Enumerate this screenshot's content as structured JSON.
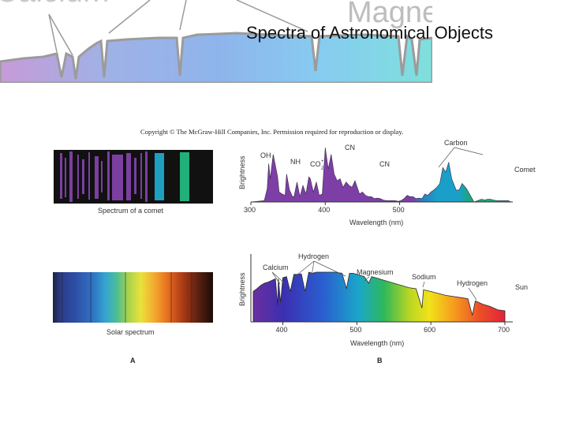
{
  "banner": {
    "left_word": "Calcium",
    "right_word": "Magne",
    "colors": [
      "#c79ad8",
      "#9fb2e6",
      "#8fb4ec",
      "#86ccf0",
      "#7fe0dc"
    ]
  },
  "slide": {
    "title": "Spectra of Astronomical Objects"
  },
  "figure": {
    "copyright": "Copyright © The McGraw-Hill Companies, Inc. Permission required for reproduction or display.",
    "panel_a_letter": "A",
    "panel_b_letter": "B",
    "comet_strip_caption": "Spectrum of a comet",
    "solar_strip_caption": "Solar spectrum"
  },
  "chart_data": [
    {
      "type": "line",
      "title": "Comet",
      "xlabel": "Wavelength (nm)",
      "ylabel": "Brightness",
      "xlim": [
        300,
        650
      ],
      "xticks": [
        300,
        400,
        500
      ],
      "x": [
        300,
        318,
        322,
        324,
        326,
        330,
        336,
        338,
        342,
        346,
        348,
        352,
        356,
        358,
        362,
        366,
        370,
        374,
        378,
        380,
        384,
        388,
        392,
        396,
        400,
        404,
        408,
        412,
        416,
        420,
        424,
        428,
        432,
        436,
        440,
        446,
        450,
        454,
        458,
        462,
        466,
        470,
        474,
        478,
        482,
        486,
        490,
        494,
        498,
        502,
        506,
        510,
        514,
        518,
        522,
        526,
        530,
        534,
        538,
        542,
        546,
        550,
        554,
        558,
        562,
        566,
        570,
        576,
        580,
        584,
        590,
        600,
        605,
        610,
        615,
        618,
        622,
        626,
        630,
        634,
        638,
        642,
        646,
        650
      ],
      "y": [
        0,
        0.02,
        0.2,
        0.58,
        0.35,
        0.72,
        0.38,
        0.15,
        0.12,
        0.1,
        0.42,
        0.18,
        0.08,
        0.08,
        0.3,
        0.08,
        0.25,
        0.12,
        0.38,
        0.35,
        0.15,
        0.3,
        0.1,
        0.12,
        0.82,
        0.5,
        0.72,
        0.42,
        0.32,
        0.35,
        0.22,
        0.3,
        0.25,
        0.22,
        0.32,
        0.12,
        0.15,
        0.1,
        0.08,
        0.08,
        0.05,
        0.06,
        0.05,
        0.03,
        0.02,
        0.02,
        0.02,
        0.02,
        0.01,
        0.02,
        0.05,
        0.1,
        0.08,
        0.08,
        0.05,
        0.06,
        0.05,
        0.12,
        0.1,
        0.15,
        0.18,
        0.22,
        0.28,
        0.52,
        0.45,
        0.6,
        0.35,
        0.18,
        0.18,
        0.28,
        0.2,
        0.0,
        0.02,
        0.04,
        0.03,
        0.04,
        0.04,
        0.03,
        0.02,
        0.02,
        0.02,
        0.02,
        0.02,
        0.0
      ],
      "annotations": [
        "OH",
        "NH",
        "CO",
        "+",
        "2",
        "CN",
        "CN",
        "Carbon"
      ],
      "label": "Comet"
    },
    {
      "type": "area",
      "title": "Sun",
      "xlabel": "Wavelength (nm)",
      "ylabel": "Brightness",
      "xlim": [
        360,
        700
      ],
      "xticks": [
        400,
        500,
        600,
        700
      ],
      "x": [
        360,
        365,
        370,
        375,
        380,
        385,
        390,
        393,
        394,
        397,
        400,
        405,
        410,
        415,
        420,
        425,
        430,
        435,
        440,
        445,
        450,
        455,
        460,
        470,
        480,
        486,
        490,
        495,
        500,
        510,
        516,
        520,
        530,
        540,
        550,
        560,
        570,
        580,
        588,
        590,
        600,
        620,
        640,
        650,
        656,
        660,
        670,
        680,
        690,
        700
      ],
      "y": [
        0.55,
        0.6,
        0.66,
        0.7,
        0.72,
        0.75,
        0.78,
        0.3,
        0.78,
        0.35,
        0.8,
        0.82,
        0.55,
        0.86,
        0.86,
        0.87,
        0.55,
        0.9,
        0.88,
        0.9,
        0.9,
        0.9,
        0.9,
        0.9,
        0.88,
        0.6,
        0.88,
        0.88,
        0.86,
        0.82,
        0.7,
        0.82,
        0.78,
        0.74,
        0.7,
        0.66,
        0.62,
        0.6,
        0.25,
        0.58,
        0.55,
        0.48,
        0.44,
        0.42,
        0.12,
        0.38,
        0.32,
        0.28,
        0.22,
        0.2
      ],
      "annotations": [
        "Calcium",
        "Hydrogen",
        "Magnesium",
        "Sodium",
        "Hydrogen"
      ],
      "label": "Sun"
    }
  ]
}
